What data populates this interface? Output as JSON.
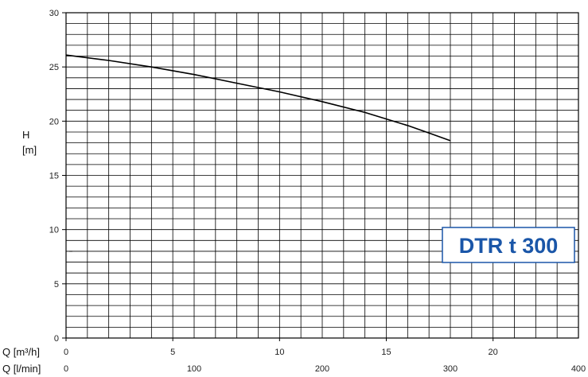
{
  "chart_data": {
    "type": "line",
    "title": "",
    "model_label": "DTR t 300",
    "ylabel": [
      "H",
      "[m]"
    ],
    "xlabel_primary": "Q [m³/h]",
    "xlabel_secondary": "Q [l/min]",
    "xlim": [
      0,
      24
    ],
    "ylim": [
      0,
      30
    ],
    "secondary_xlim": [
      0,
      400
    ],
    "y_ticks": [
      0,
      5,
      10,
      15,
      20,
      25,
      30
    ],
    "x_ticks_primary": [
      0,
      5,
      10,
      15,
      20
    ],
    "x_ticks_secondary": [
      0,
      100,
      200,
      300,
      400
    ],
    "grid": true,
    "grid_minor_x_step": 1,
    "grid_minor_y_step": 1,
    "series": [
      {
        "x": [
          0,
          2,
          4,
          6,
          8,
          10,
          12,
          14,
          16,
          17,
          18
        ],
        "y": [
          26.1,
          25.6,
          25.0,
          24.3,
          23.5,
          22.7,
          21.8,
          20.8,
          19.6,
          18.9,
          18.2
        ],
        "color": "#000000"
      }
    ],
    "colors": {
      "grid": "#000000",
      "curve": "#000000",
      "label_text": "#1a56a8",
      "label_border": "#1a56a8"
    }
  }
}
